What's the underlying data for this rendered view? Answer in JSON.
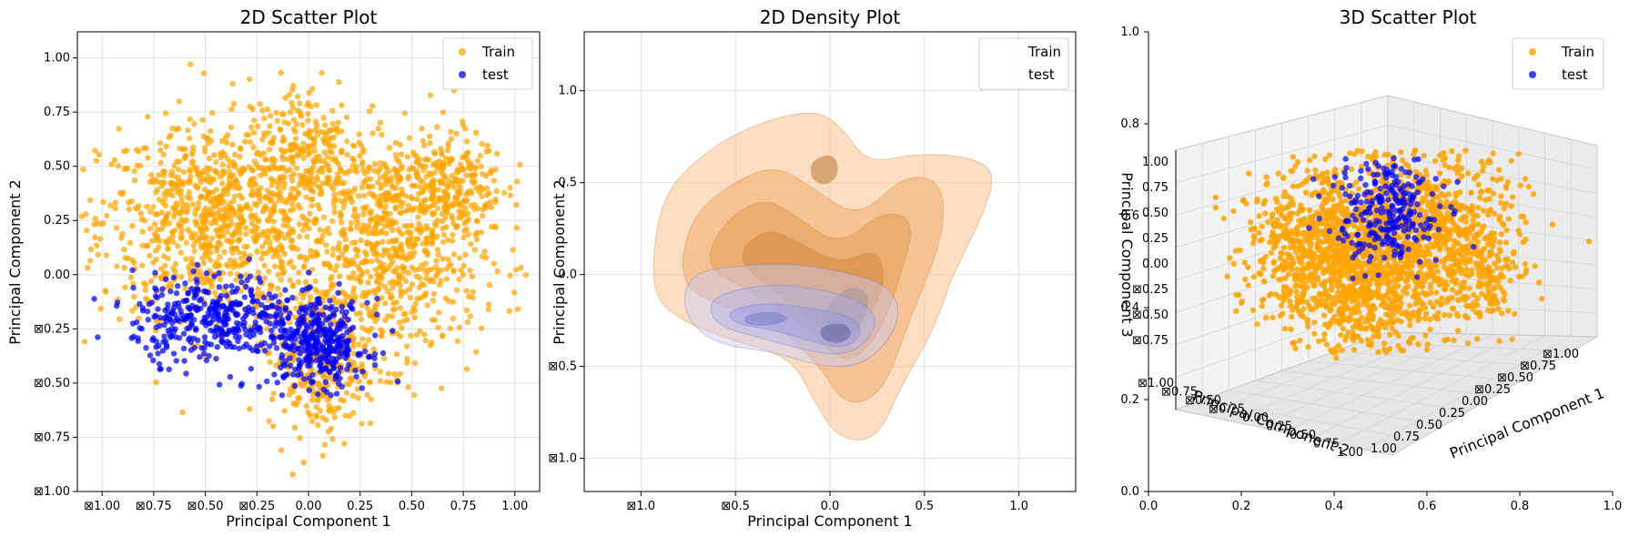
{
  "colors": {
    "train": "#FFA500",
    "test": "#0000FF",
    "grid": "#e0e0e0",
    "frame": "#000000"
  },
  "chart_data": [
    {
      "type": "scatter",
      "title": "2D Scatter Plot",
      "xlabel": "Principal Component 1",
      "ylabel": "Principal Component 2",
      "xlim": [
        -1.12,
        1.12
      ],
      "ylim": [
        -1.0,
        1.12
      ],
      "xticks": [
        -1.0,
        -0.75,
        -0.5,
        -0.25,
        0.0,
        0.25,
        0.5,
        0.75,
        1.0
      ],
      "xtick_labels": [
        "⊠1.00",
        "⊠0.75",
        "⊠0.50",
        "⊠0.25",
        "0.00",
        "0.25",
        "0.50",
        "0.75",
        "1.00"
      ],
      "yticks": [
        -1.0,
        -0.75,
        -0.5,
        -0.25,
        0.0,
        0.25,
        0.5,
        0.75,
        1.0
      ],
      "ytick_labels": [
        "⊠1.00",
        "⊠0.75",
        "⊠0.50",
        "⊠0.25",
        "0.00",
        "0.25",
        "0.50",
        "0.75",
        "1.00"
      ],
      "grid": true,
      "legend": "upper right",
      "series": [
        {
          "name": "Train",
          "color_key": "train",
          "clusters": [
            {
              "cx": -0.45,
              "cy": 0.25,
              "sx": 0.28,
              "sy": 0.22,
              "n": 900
            },
            {
              "cx": 0.4,
              "cy": 0.1,
              "sx": 0.22,
              "sy": 0.25,
              "n": 700
            },
            {
              "cx": 0.0,
              "cy": 0.55,
              "sx": 0.15,
              "sy": 0.18,
              "n": 260
            },
            {
              "cx": 0.05,
              "cy": -0.38,
              "sx": 0.12,
              "sy": 0.18,
              "n": 320
            },
            {
              "cx": 0.65,
              "cy": 0.42,
              "sx": 0.15,
              "sy": 0.12,
              "n": 260
            }
          ]
        },
        {
          "name": "test",
          "color_key": "test",
          "clusters": [
            {
              "cx": -0.45,
              "cy": -0.2,
              "sx": 0.2,
              "sy": 0.1,
              "n": 380
            },
            {
              "cx": 0.05,
              "cy": -0.32,
              "sx": 0.12,
              "sy": 0.1,
              "n": 340
            }
          ]
        }
      ]
    },
    {
      "type": "density",
      "title": "2D Density Plot",
      "xlabel": "Principal Component 1",
      "ylabel": "Principal Component 2",
      "xlim": [
        -1.3,
        1.3
      ],
      "ylim": [
        -1.18,
        1.32
      ],
      "xticks": [
        -1.0,
        -0.5,
        0.0,
        0.5,
        1.0
      ],
      "xtick_labels": [
        "⊠1.0",
        "⊠0.5",
        "0.0",
        "0.5",
        "1.0"
      ],
      "yticks": [
        -1.0,
        -0.5,
        0.0,
        0.5,
        1.0
      ],
      "ytick_labels": [
        "⊠1.0",
        "⊠0.5",
        "0.0",
        "0.5",
        "1.0"
      ],
      "grid": true,
      "legend": "upper right",
      "series": [
        {
          "name": "Train",
          "color_key": "train",
          "levels": [
            [
              [
                -0.95,
                -0.05
              ],
              [
                -0.9,
                0.4
              ],
              [
                -0.72,
                0.62
              ],
              [
                -0.45,
                0.8
              ],
              [
                -0.1,
                0.9
              ],
              [
                0.05,
                0.82
              ],
              [
                0.2,
                0.6
              ],
              [
                0.45,
                0.66
              ],
              [
                0.75,
                0.64
              ],
              [
                0.88,
                0.55
              ],
              [
                0.8,
                0.3
              ],
              [
                0.65,
                0.0
              ],
              [
                0.55,
                -0.3
              ],
              [
                0.38,
                -0.6
              ],
              [
                0.25,
                -0.9
              ],
              [
                0.05,
                -0.9
              ],
              [
                -0.08,
                -0.7
              ],
              [
                -0.2,
                -0.45
              ],
              [
                -0.55,
                -0.35
              ],
              [
                -0.85,
                -0.22
              ]
            ],
            [
              [
                -0.8,
                -0.02
              ],
              [
                -0.74,
                0.3
              ],
              [
                -0.55,
                0.48
              ],
              [
                -0.3,
                0.6
              ],
              [
                -0.1,
                0.48
              ],
              [
                0.15,
                0.3
              ],
              [
                0.4,
                0.55
              ],
              [
                0.6,
                0.5
              ],
              [
                0.6,
                0.2
              ],
              [
                0.42,
                -0.25
              ],
              [
                0.28,
                -0.65
              ],
              [
                0.08,
                -0.72
              ],
              [
                -0.05,
                -0.5
              ],
              [
                -0.3,
                -0.25
              ],
              [
                -0.65,
                -0.15
              ]
            ],
            [
              [
                -0.68,
                0.05
              ],
              [
                -0.55,
                0.3
              ],
              [
                -0.35,
                0.42
              ],
              [
                -0.18,
                0.32
              ],
              [
                0.05,
                0.15
              ],
              [
                0.28,
                0.35
              ],
              [
                0.45,
                0.3
              ],
              [
                0.38,
                0.0
              ],
              [
                0.25,
                -0.35
              ],
              [
                0.08,
                -0.5
              ],
              [
                -0.1,
                -0.3
              ],
              [
                -0.4,
                -0.1
              ]
            ],
            [
              [
                -0.5,
                0.1
              ],
              [
                -0.35,
                0.25
              ],
              [
                -0.2,
                0.2
              ],
              [
                0.05,
                0.05
              ],
              [
                0.25,
                0.15
              ],
              [
                0.3,
                -0.05
              ],
              [
                0.18,
                -0.28
              ],
              [
                0.05,
                -0.38
              ],
              [
                -0.15,
                -0.2
              ],
              [
                -0.35,
                -0.05
              ]
            ],
            [
              [
                -0.1,
                0.62
              ],
              [
                0.02,
                0.66
              ],
              [
                0.05,
                0.55
              ],
              [
                -0.02,
                0.48
              ],
              [
                -0.1,
                0.52
              ]
            ],
            [
              [
                0.0,
                -0.15
              ],
              [
                0.12,
                -0.05
              ],
              [
                0.22,
                -0.12
              ],
              [
                0.16,
                -0.3
              ],
              [
                0.02,
                -0.35
              ],
              [
                -0.05,
                -0.25
              ]
            ]
          ]
        },
        {
          "name": "test",
          "color_key": "test",
          "levels": [
            [
              [
                -0.78,
                -0.1
              ],
              [
                -0.7,
                0.02
              ],
              [
                -0.45,
                0.05
              ],
              [
                -0.2,
                0.06
              ],
              [
                0.05,
                0.02
              ],
              [
                0.3,
                -0.05
              ],
              [
                0.38,
                -0.2
              ],
              [
                0.3,
                -0.38
              ],
              [
                0.15,
                -0.5
              ],
              [
                -0.05,
                -0.5
              ],
              [
                -0.3,
                -0.42
              ],
              [
                -0.6,
                -0.38
              ],
              [
                -0.75,
                -0.25
              ]
            ],
            [
              [
                -0.65,
                -0.15
              ],
              [
                -0.5,
                -0.08
              ],
              [
                -0.25,
                -0.05
              ],
              [
                0.05,
                -0.1
              ],
              [
                0.25,
                -0.2
              ],
              [
                0.22,
                -0.35
              ],
              [
                0.08,
                -0.44
              ],
              [
                -0.1,
                -0.42
              ],
              [
                -0.35,
                -0.35
              ],
              [
                -0.6,
                -0.28
              ]
            ],
            [
              [
                -0.55,
                -0.2
              ],
              [
                -0.35,
                -0.15
              ],
              [
                -0.1,
                -0.18
              ],
              [
                0.1,
                -0.22
              ],
              [
                0.18,
                -0.3
              ],
              [
                0.1,
                -0.4
              ],
              [
                -0.05,
                -0.38
              ],
              [
                -0.3,
                -0.3
              ],
              [
                -0.5,
                -0.27
              ]
            ],
            [
              [
                -0.45,
                -0.22
              ],
              [
                -0.3,
                -0.2
              ],
              [
                -0.2,
                -0.24
              ],
              [
                -0.33,
                -0.28
              ],
              [
                -0.45,
                -0.27
              ]
            ],
            [
              [
                -0.05,
                -0.28
              ],
              [
                0.08,
                -0.26
              ],
              [
                0.12,
                -0.33
              ],
              [
                0.05,
                -0.38
              ],
              [
                -0.05,
                -0.35
              ]
            ]
          ]
        }
      ]
    },
    {
      "type": "scatter3d",
      "title": "3D Scatter Plot",
      "xlabel": "Principal Component 1",
      "ylabel": "Principal Component 2",
      "zlabel": "Principal Component 3",
      "frame_xlim": [
        0.0,
        1.0
      ],
      "frame_ylim": [
        0.0,
        1.0
      ],
      "frame_xticks": [
        "0.0",
        "0.2",
        "0.4",
        "0.6",
        "0.8",
        "1.0"
      ],
      "frame_yticks": [
        "0.0",
        "0.2",
        "0.4",
        "0.6",
        "0.8",
        "1.0"
      ],
      "pc1_ticks": [
        "⊠1.00",
        "⊠0.75",
        "⊠0.50",
        "⊠0.25",
        "0.00",
        "0.25",
        "0.50",
        "0.75",
        "1.00"
      ],
      "pc2_ticks": [
        "⊠1.00",
        "⊠0.75",
        "⊠0.50",
        "⊠0.25",
        "0.00",
        "0.25",
        "0.50",
        "0.75",
        "1.00"
      ],
      "pc3_ticks": [
        "⊠0.75",
        "⊠0.50",
        "⊠0.25",
        "0.00",
        "0.25",
        "0.50",
        "0.75",
        "1.00"
      ],
      "legend": "upper right",
      "series": [
        {
          "name": "Train",
          "color_key": "train"
        },
        {
          "name": "test",
          "color_key": "test"
        }
      ]
    }
  ]
}
